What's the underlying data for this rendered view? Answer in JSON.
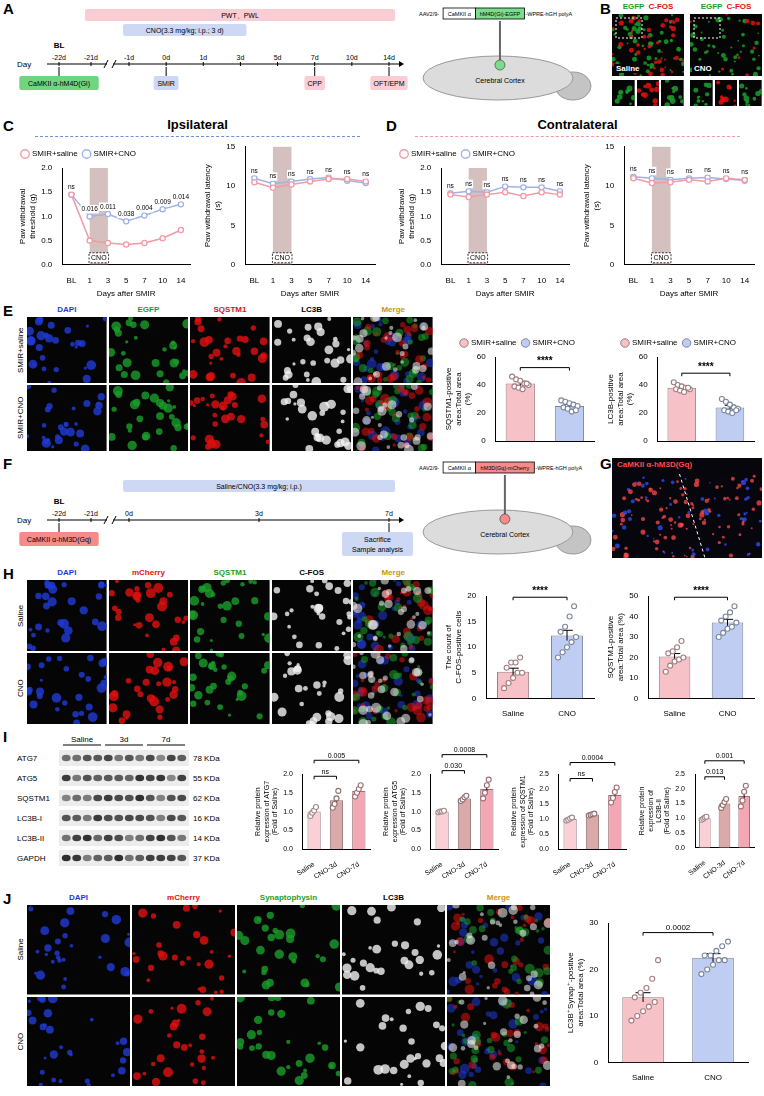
{
  "panels": [
    {
      "letter": "A",
      "timeline": {
        "axis_label": "Day",
        "ticks": [
          "-22d",
          "-21d",
          "-1d",
          "0d",
          "1d",
          "3d",
          "5d",
          "7d",
          "10d",
          "14d"
        ],
        "above_labels": [
          {
            "at": "-22d",
            "text": "BL"
          }
        ],
        "bars": [
          {
            "text": "PWT、PWL",
            "from": "-21d",
            "to": "14d",
            "color": "#f9cdd3"
          },
          {
            "text": "CNO(3.3 mg/kg; i.p.; 3 d)",
            "from": "-1d",
            "to": "3d",
            "color": "#cdd8f4"
          }
        ],
        "boxes": [
          {
            "text": [
              "CaMKII α-hM4D(Gi)"
            ],
            "at": "-22d",
            "color": "#6fd67f"
          },
          {
            "text": [
              "SMIR"
            ],
            "at": "0d",
            "color": "#cdd8f4"
          },
          {
            "text": [
              "CPP"
            ],
            "at": "7d",
            "color": "#f9cdd3"
          },
          {
            "text": [
              "OFT/EPM"
            ],
            "at": "14d",
            "color": "#f9cdd3"
          }
        ]
      },
      "construct": {
        "prefix": "AAV2/9-",
        "promoter": "CaMKII α",
        "gene": "hM4D(Gi)-EGFP",
        "suffix": "-WPRE-hGH polyA",
        "region": "Cerebral Cortex",
        "color": "#7ddc8c"
      }
    },
    {
      "letter": "B",
      "channels": [
        "EGFP",
        "C-FOS"
      ],
      "colors": [
        "#1a9e2a",
        "#e01010"
      ],
      "conditions": [
        "Saline",
        "CNO"
      ]
    },
    {
      "letter": "C",
      "title": "Ipsilateral",
      "color": "#6f8fd8"
    },
    {
      "letter": "D",
      "title": "Contralateral",
      "color": "#f29aa6"
    },
    {
      "letter": "E",
      "columns": [
        "DAPI",
        "EGFP",
        "SQSTM1",
        "LC3B",
        "Merge"
      ],
      "colors": [
        "#1f3bd6",
        "#1a9e2a",
        "#e01010",
        "#000000",
        "#c8960c"
      ],
      "rows": [
        "SMIR+saline",
        "SMIR+CNO"
      ]
    },
    {
      "letter": "F",
      "timeline": {
        "axis_label": "Day",
        "ticks": [
          "-22d",
          "-21d",
          "0d",
          "3d",
          "7d"
        ],
        "above_labels": [
          {
            "at": "-22d",
            "text": "BL"
          }
        ],
        "bars": [
          {
            "text": "Saline/CNO(3.3 mg/kg; i.p.)",
            "from": "0d",
            "to": "7d",
            "color": "#cdd8f4"
          }
        ],
        "boxes": [
          {
            "text": [
              "CaMKII α-hM3D(Gq)"
            ],
            "at": "-22d",
            "color": "#f48a8a"
          },
          {
            "text": [
              "Sacrifice",
              "Sample analysis"
            ],
            "at": "7d",
            "color": "#cdd8f4"
          }
        ]
      },
      "construct": {
        "prefix": "AAV2/9-",
        "promoter": "CaMKII α",
        "gene": "hM3D(Gq)-mCherry",
        "suffix": "-WPRE-hGH polyA",
        "region": "Cerebral Cortex",
        "color": "#f48a8a"
      }
    },
    {
      "letter": "G",
      "label": "CaMKII α-hM3D(Gq)",
      "color": "#ff4a4a"
    },
    {
      "letter": "H",
      "columns": [
        "DAPI",
        "mCherry",
        "SQSTM1",
        "C-FOS",
        "Merge"
      ],
      "colors": [
        "#1f3bd6",
        "#e01010",
        "#1a9e2a",
        "#000000",
        "#c8960c"
      ],
      "rows": [
        "Saline",
        "CNO"
      ]
    },
    {
      "letter": "I",
      "groups": [
        "Saline",
        "3d",
        "7d"
      ],
      "rows": [
        {
          "protein": "ATG7",
          "size": "78 KDa"
        },
        {
          "protein": "ATG5",
          "size": "55 KDa"
        },
        {
          "protein": "SQSTM1",
          "size": "62 KDa"
        },
        {
          "protein": "LC3B-I",
          "size": "16 KDa"
        },
        {
          "protein": "LC3B-II",
          "size": "14 KDa"
        },
        {
          "protein": "GAPDH",
          "size": "37 KDa"
        }
      ]
    },
    {
      "letter": "J",
      "columns": [
        "DAPI",
        "mCherry",
        "Synaptophysin",
        "LC3B",
        "Merge"
      ],
      "colors": [
        "#1f3bd6",
        "#e01010",
        "#1a9e2a",
        "#000000",
        "#c8960c"
      ],
      "rows": [
        "Saline",
        "CNO"
      ]
    }
  ],
  "chart_data": [
    {
      "type": "line",
      "x_label": "Days after SMIR",
      "y_label": "Paw withdrawal threshold (g)",
      "categories": [
        "BL",
        "1",
        "3",
        "5",
        "7",
        "10",
        "14"
      ],
      "series": [
        {
          "name": "SMIR+saline",
          "color": "#f29aa6",
          "marker": "circle",
          "values": [
            1.45,
            0.5,
            0.45,
            0.42,
            0.45,
            0.55,
            0.72
          ]
        },
        {
          "name": "SMIR+CNO",
          "color": "#9fb2ea",
          "marker": "circle",
          "values": [
            1.45,
            1.0,
            1.05,
            0.9,
            1.02,
            1.15,
            1.25
          ]
        }
      ],
      "ylim": [
        0,
        2
      ],
      "yticks": [
        {
          "value": 0,
          "label": "0.0"
        },
        0.5,
        {
          "value": 1,
          "label": "1.0"
        },
        1.5,
        {
          "value": 2,
          "label": "2.0"
        }
      ],
      "annotations": [
        {
          "text": "CNO",
          "from": "1",
          "to": "3"
        }
      ],
      "p_labels": [
        "ns",
        "0.016",
        "0.011",
        "0.038",
        "0.004",
        "0.009",
        "0.014"
      ],
      "legend": "top-left",
      "grid": false
    },
    {
      "type": "line",
      "x_label": "Days after SMIR",
      "y_label": "Paw withdrawal latency (s)",
      "categories": [
        "BL",
        "1",
        "3",
        "5",
        "7",
        "10",
        "14"
      ],
      "series": [
        {
          "name": "SMIR+saline",
          "color": "#f29aa6",
          "marker": "circle",
          "values": [
            10.5,
            9.8,
            10.2,
            10.6,
            10.9,
            10.9,
            10.6
          ]
        },
        {
          "name": "SMIR+CNO",
          "color": "#9fb2ea",
          "marker": "circle",
          "values": [
            11.0,
            10.3,
            10.6,
            10.9,
            11.1,
            10.7,
            10.4
          ]
        }
      ],
      "ylim": [
        0,
        15
      ],
      "yticks": [
        0,
        5,
        10,
        15
      ],
      "annotations": [
        {
          "text": "CNO",
          "from": "1",
          "to": "3"
        }
      ],
      "p_labels": [
        "ns",
        "ns",
        "ns",
        "ns",
        "ns",
        "ns",
        "ns"
      ],
      "grid": false
    },
    {
      "type": "line",
      "x_label": "Days after SMIR",
      "y_label": "Paw withdrawal threshold (g)",
      "categories": [
        "BL",
        "1",
        "3",
        "5",
        "7",
        "10",
        "14"
      ],
      "series": [
        {
          "name": "SMIR+saline",
          "color": "#f29aa6",
          "marker": "circle",
          "values": [
            1.45,
            1.4,
            1.45,
            1.5,
            1.42,
            1.5,
            1.45
          ]
        },
        {
          "name": "SMIR+CNO",
          "color": "#9fb2ea",
          "marker": "circle",
          "values": [
            1.48,
            1.52,
            1.5,
            1.62,
            1.6,
            1.6,
            1.52
          ]
        }
      ],
      "ylim": [
        0,
        2
      ],
      "yticks": [
        {
          "value": 0,
          "label": "0.0"
        },
        0.5,
        {
          "value": 1,
          "label": "1.0"
        },
        1.5,
        {
          "value": 2,
          "label": "2.0"
        }
      ],
      "annotations": [
        {
          "text": "CNO",
          "from": "1",
          "to": "3"
        }
      ],
      "p_labels": [
        "ns",
        "ns",
        "ns",
        "ns",
        "ns",
        "ns",
        "ns"
      ],
      "legend": "top-left",
      "grid": false
    },
    {
      "type": "line",
      "x_label": "Days after SMIR",
      "y_label": "Paw withdrawal latency (s)",
      "categories": [
        "BL",
        "1",
        "3",
        "5",
        "7",
        "10",
        "14"
      ],
      "series": [
        {
          "name": "SMIR+saline",
          "color": "#f29aa6",
          "marker": "circle",
          "values": [
            11.0,
            10.4,
            10.5,
            10.8,
            10.6,
            11.0,
            10.8
          ]
        },
        {
          "name": "SMIR+CNO",
          "color": "#9fb2ea",
          "marker": "circle",
          "values": [
            11.2,
            11.0,
            10.8,
            11.0,
            11.1,
            10.9,
            10.7
          ]
        }
      ],
      "ylim": [
        0,
        15
      ],
      "yticks": [
        0,
        5,
        10,
        15
      ],
      "annotations": [
        {
          "text": "CNO",
          "from": "1",
          "to": "3"
        }
      ],
      "p_labels": [
        "ns",
        "ns",
        "ns",
        "ns",
        "ns",
        "ns",
        "ns"
      ],
      "grid": false
    },
    {
      "type": "bar",
      "y_label": "SQSTM1-positive area:Total area (%)",
      "categories": [
        "SMIR+saline",
        "SMIR+CNO"
      ],
      "colors": [
        "#f6c1c7",
        "#bfcdf2"
      ],
      "values": [
        41,
        25
      ],
      "errors": [
        1.6,
        1.3
      ],
      "points": [
        [
          46,
          44,
          43,
          41,
          40,
          39,
          38,
          37,
          41
        ],
        [
          29,
          28,
          27,
          26,
          25,
          24,
          23,
          21,
          22
        ]
      ],
      "ylim": [
        0,
        60
      ],
      "yticks": [
        0,
        20,
        40,
        60
      ],
      "comparisons": [
        {
          "from": "SMIR+saline",
          "to": "SMIR+CNO",
          "label": "****"
        }
      ],
      "tick_labels": "y",
      "legend": "top",
      "grid": false
    },
    {
      "type": "bar",
      "y_label": "LC3B-positive area:Total area (%)",
      "categories": [
        "SMIR+saline",
        "SMIR+CNO"
      ],
      "colors": [
        "#f6c1c7",
        "#bfcdf2"
      ],
      "values": [
        38,
        24
      ],
      "errors": [
        1.2,
        1.5
      ],
      "points": [
        [
          42,
          40,
          39,
          38,
          37,
          37,
          36,
          35,
          38
        ],
        [
          30,
          28,
          26,
          24,
          23,
          22,
          21,
          20,
          22
        ]
      ],
      "ylim": [
        0,
        60
      ],
      "yticks": [
        0,
        20,
        40,
        60
      ],
      "comparisons": [
        {
          "from": "SMIR+saline",
          "to": "SMIR+CNO",
          "label": "****"
        }
      ],
      "tick_labels": "y",
      "legend": "top",
      "grid": false
    },
    {
      "type": "bar",
      "y_label": "The count of C-FOS-positive cells",
      "categories": [
        "Saline",
        "CNO"
      ],
      "colors": [
        "#f6c1c7",
        "#bfcdf2"
      ],
      "values": [
        5.2,
        12.3
      ],
      "errors": [
        0.7,
        1.0
      ],
      "points": [
        [
          2,
          3,
          4,
          5,
          5,
          6,
          7,
          7,
          8
        ],
        [
          8,
          9,
          10,
          11,
          12,
          13,
          14,
          16,
          18
        ]
      ],
      "ylim": [
        0,
        20
      ],
      "yticks": [
        0,
        5,
        10,
        15,
        20
      ],
      "comparisons": [
        {
          "from": "Saline",
          "to": "CNO",
          "label": "****"
        }
      ],
      "grid": false
    },
    {
      "type": "bar",
      "y_label": "SQSTM1-positive area:Total area (%)",
      "categories": [
        "Saline",
        "CNO"
      ],
      "colors": [
        "#f6c1c7",
        "#bfcdf2"
      ],
      "values": [
        20.4,
        37
      ],
      "errors": [
        1.5,
        1.6
      ],
      "points": [
        [
          13,
          16,
          18,
          19,
          20,
          22,
          23,
          25,
          28
        ],
        [
          30,
          32,
          34,
          35,
          37,
          38,
          40,
          42,
          45
        ]
      ],
      "ylim": [
        0,
        50
      ],
      "yticks": [
        0,
        10,
        20,
        30,
        40,
        50
      ],
      "comparisons": [
        {
          "from": "Saline",
          "to": "CNO",
          "label": "****"
        }
      ],
      "grid": false
    },
    {
      "type": "bar",
      "y_label": [
        "Relative protein expression of ATG7",
        "(Fold of Saline)"
      ],
      "categories": [
        "Saline",
        "CNO-3d",
        "CNO-7d"
      ],
      "colors": [
        "#f9d0d5",
        "#d9aaa9",
        "#f2a7b2"
      ],
      "values": [
        1.0,
        1.3,
        1.55
      ],
      "errors": [
        0.07,
        0.1,
        0.06
      ],
      "points": [
        [
          0.88,
          0.97,
          1.03,
          1.12
        ],
        [
          1.1,
          1.2,
          1.35,
          1.55
        ],
        [
          1.4,
          1.5,
          1.6,
          1.7
        ]
      ],
      "ylim": [
        0,
        2
      ],
      "yticks": [
        {
          "value": 0,
          "label": "0.0"
        },
        0.5,
        {
          "value": 1,
          "label": "1.0"
        },
        1.5,
        {
          "value": 2,
          "label": "2.0"
        }
      ],
      "comparisons": [
        {
          "from": "Saline",
          "to": "CNO-3d",
          "label": "ns"
        },
        {
          "from": "Saline",
          "to": "CNO-7d",
          "label": "0.005"
        }
      ],
      "grid": false
    },
    {
      "type": "bar",
      "y_label": [
        "Relative protein expression of ATG5",
        "(Fold of Saline)"
      ],
      "categories": [
        "Saline",
        "CNO-3d",
        "CNO-7d"
      ],
      "colors": [
        "#f9d0d5",
        "#d9aaa9",
        "#f2a7b2"
      ],
      "values": [
        1.0,
        1.35,
        1.6
      ],
      "errors": [
        0.02,
        0.04,
        0.12
      ],
      "points": [
        [
          0.98,
          1.0,
          1.0,
          1.02
        ],
        [
          1.28,
          1.32,
          1.38,
          1.42
        ],
        [
          1.35,
          1.5,
          1.7,
          1.85
        ]
      ],
      "ylim": [
        0,
        2
      ],
      "yticks": [
        {
          "value": 0,
          "label": "0.0"
        },
        0.5,
        {
          "value": 1,
          "label": "1.0"
        },
        1.5,
        {
          "value": 2,
          "label": "2.0"
        }
      ],
      "comparisons": [
        {
          "from": "Saline",
          "to": "CNO-3d",
          "label": "0.030"
        },
        {
          "from": "Saline",
          "to": "CNO-7d",
          "label": "0.0008"
        }
      ],
      "grid": false
    },
    {
      "type": "bar",
      "y_label": [
        "Relative protein expression of SQSTM1",
        "(Fold of Saline)"
      ],
      "categories": [
        "Saline",
        "CNO-3d",
        "CNO-7d"
      ],
      "colors": [
        "#f9d0d5",
        "#d9aaa9",
        "#f2a7b2"
      ],
      "values": [
        1.0,
        1.15,
        1.8
      ],
      "errors": [
        0.03,
        0.02,
        0.12
      ],
      "points": [
        [
          0.95,
          0.98,
          1.02,
          1.05
        ],
        [
          1.12,
          1.14,
          1.16,
          1.18
        ],
        [
          1.55,
          1.7,
          1.9,
          2.05
        ]
      ],
      "ylim": [
        0,
        2.5
      ],
      "yticks": [
        {
          "value": 0,
          "label": "0.0"
        },
        0.5,
        {
          "value": 1,
          "label": "1.0"
        },
        1.5,
        {
          "value": 2,
          "label": "2.0"
        },
        2.5
      ],
      "comparisons": [
        {
          "from": "Saline",
          "to": "CNO-3d",
          "label": "ns"
        },
        {
          "from": "Saline",
          "to": "CNO-7d",
          "label": "0.0004"
        }
      ],
      "grid": false
    },
    {
      "type": "bar",
      "y_label": [
        "Relative protein expression of LC3B-II",
        "(Fold of Saline)"
      ],
      "categories": [
        "Saline",
        "CNO-3d",
        "CNO-7d"
      ],
      "colors": [
        "#f9d0d5",
        "#d9aaa9",
        "#f2a7b2"
      ],
      "values": [
        1.0,
        1.5,
        1.75
      ],
      "errors": [
        0.03,
        0.07,
        0.15
      ],
      "points": [
        [
          0.95,
          0.98,
          1.02,
          1.05
        ],
        [
          1.35,
          1.45,
          1.55,
          1.65
        ],
        [
          1.4,
          1.6,
          1.9,
          2.1
        ]
      ],
      "ylim": [
        0,
        2.5
      ],
      "yticks": [
        {
          "value": 0,
          "label": "0.0"
        },
        0.5,
        {
          "value": 1,
          "label": "1.0"
        },
        1.5,
        {
          "value": 2,
          "label": "2.0"
        },
        2.5
      ],
      "comparisons": [
        {
          "from": "Saline",
          "to": "CNO-3d",
          "label": "0.013"
        },
        {
          "from": "Saline",
          "to": "CNO-7d",
          "label": "0.001"
        }
      ],
      "grid": false
    },
    {
      "type": "bar",
      "y_label": "LC3B⁺Synap⁺-positive area:Total area (%)",
      "categories": [
        "Saline",
        "CNO"
      ],
      "colors": [
        "#f6c1c7",
        "#bfcdf2"
      ],
      "values": [
        14,
        22.5
      ],
      "errors": [
        1.0,
        0.9
      ],
      "points": [
        [
          9,
          10,
          11,
          12,
          13,
          14,
          15,
          16,
          18,
          22
        ],
        [
          19,
          20,
          21,
          22,
          22,
          23,
          23,
          24,
          25,
          26
        ]
      ],
      "ylim": [
        0,
        30
      ],
      "yticks": [
        0,
        10,
        20,
        30
      ],
      "comparisons": [
        {
          "from": "Saline",
          "to": "CNO",
          "label": "0.0002"
        }
      ],
      "grid": false
    }
  ]
}
